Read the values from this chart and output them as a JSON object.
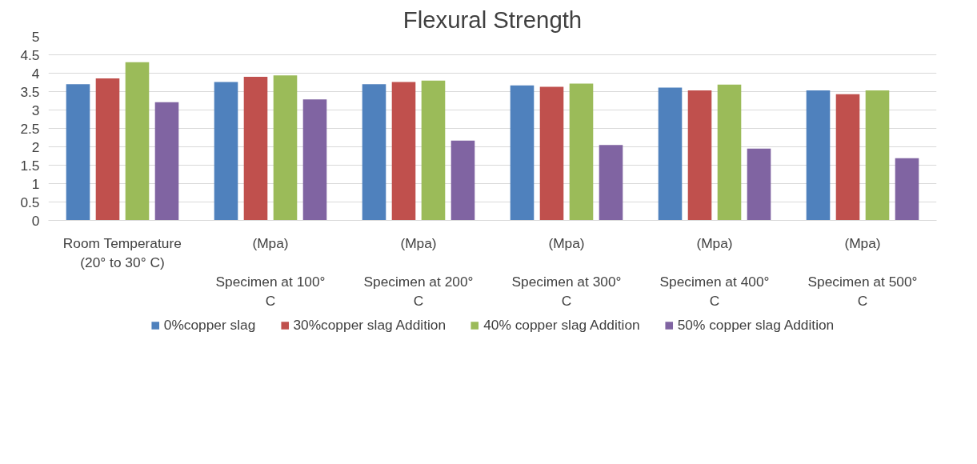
{
  "chart_data": {
    "type": "bar",
    "title": "Flexural Strength",
    "categories": [
      "Room Temperature (20° to 30° C)",
      "(Mpa)\nSpecimen at 100° C",
      "(Mpa)\nSpecimen at 200° C",
      "(Mpa)\nSpecimen at 300° C",
      "(Mpa)\nSpecimen at 400° C",
      "(Mpa)\nSpecimen at 500° C"
    ],
    "series": [
      {
        "name": "0%copper slag",
        "color": "#4f81bd",
        "values": [
          3.7,
          3.76,
          3.7,
          3.67,
          3.61,
          3.53
        ]
      },
      {
        "name": "30%copper slag Addition",
        "color": "#c0504d",
        "values": [
          3.86,
          3.9,
          3.76,
          3.63,
          3.53,
          3.43
        ]
      },
      {
        "name": "40% copper slag Addition",
        "color": "#9bbb59",
        "values": [
          4.3,
          3.94,
          3.8,
          3.72,
          3.69,
          3.53
        ]
      },
      {
        "name": "50% copper slag Addition",
        "color": "#8064a2",
        "values": [
          3.21,
          3.29,
          2.17,
          2.05,
          1.95,
          1.69
        ]
      }
    ],
    "ylim": [
      0,
      5
    ],
    "yticks": [
      0,
      0.5,
      1,
      1.5,
      2,
      2.5,
      3,
      3.5,
      4,
      4.5,
      5
    ],
    "grid": "y",
    "legend": "bottom"
  }
}
